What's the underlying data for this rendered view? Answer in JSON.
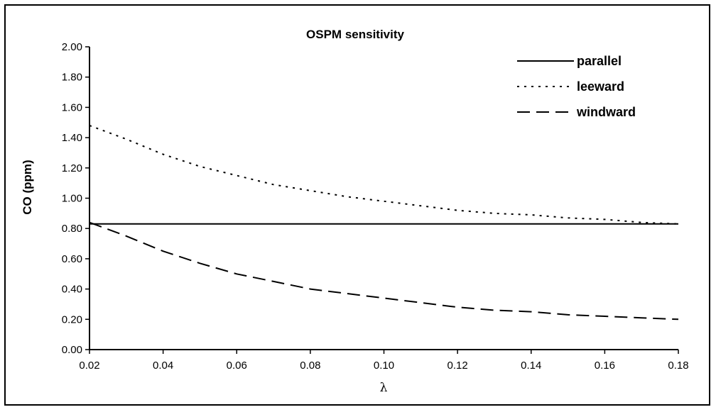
{
  "chart_data": {
    "type": "line",
    "title": "OSPM sensitivity",
    "xlabel": "λ",
    "ylabel": "CO (ppm)",
    "xlim": [
      0.02,
      0.18
    ],
    "ylim": [
      0.0,
      2.0
    ],
    "x_ticks": [
      "0.02",
      "0.04",
      "0.06",
      "0.08",
      "0.10",
      "0.12",
      "0.14",
      "0.16",
      "0.18"
    ],
    "y_ticks": [
      "0.00",
      "0.20",
      "0.40",
      "0.60",
      "0.80",
      "1.00",
      "1.20",
      "1.40",
      "1.60",
      "1.80",
      "2.00"
    ],
    "grid": false,
    "legend_position": "top-right",
    "x": [
      0.02,
      0.03,
      0.04,
      0.05,
      0.06,
      0.07,
      0.08,
      0.09,
      0.1,
      0.11,
      0.12,
      0.13,
      0.14,
      0.15,
      0.16,
      0.17,
      0.18
    ],
    "series": [
      {
        "name": "parallel",
        "style": "solid",
        "values": [
          0.83,
          0.83,
          0.83,
          0.83,
          0.83,
          0.83,
          0.83,
          0.83,
          0.83,
          0.83,
          0.83,
          0.83,
          0.83,
          0.83,
          0.83,
          0.83,
          0.83
        ]
      },
      {
        "name": "leeward",
        "style": "dotted",
        "values": [
          1.48,
          1.39,
          1.29,
          1.21,
          1.15,
          1.09,
          1.05,
          1.01,
          0.98,
          0.95,
          0.92,
          0.9,
          0.89,
          0.87,
          0.86,
          0.84,
          0.83
        ]
      },
      {
        "name": "windward",
        "style": "dashed",
        "values": [
          0.84,
          0.75,
          0.65,
          0.57,
          0.5,
          0.45,
          0.4,
          0.37,
          0.34,
          0.31,
          0.28,
          0.26,
          0.25,
          0.23,
          0.22,
          0.21,
          0.2
        ]
      }
    ]
  }
}
